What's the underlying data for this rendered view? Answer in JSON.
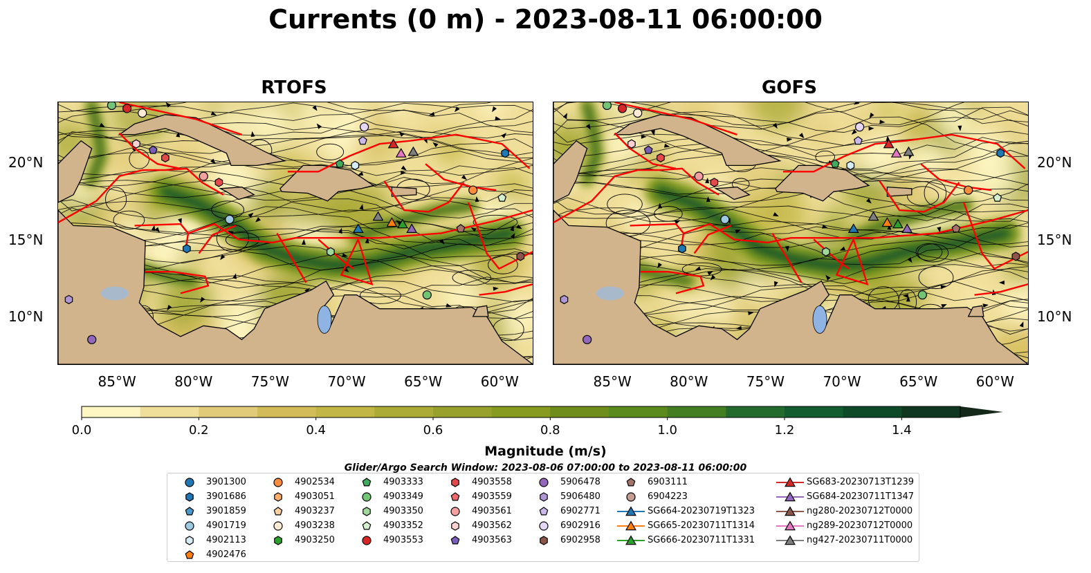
{
  "figure": {
    "title": "Currents (0 m) - 2023-08-11 06:00:00"
  },
  "panels": [
    {
      "title": "RTOFS"
    },
    {
      "title": "GOFS"
    }
  ],
  "axes": {
    "lon_ticks": [
      "85°W",
      "80°W",
      "75°W",
      "70°W",
      "65°W",
      "60°W"
    ],
    "lat_ticks": [
      "20°N",
      "15°N",
      "10°N"
    ]
  },
  "colorbar": {
    "label": "Magnitude (m/s)",
    "ticks": [
      "0.0",
      "0.2",
      "0.4",
      "0.6",
      "0.8",
      "1.0",
      "1.2",
      "1.4"
    ],
    "range": [
      0.0,
      1.5
    ],
    "step": 0.1,
    "colors": [
      "#fef6c3",
      "#f0df9a",
      "#e1cb78",
      "#d4bb59",
      "#c2b646",
      "#acab38",
      "#98a12c",
      "#869b1f",
      "#6f8d1a",
      "#5b8a1d",
      "#437f22",
      "#226b2c",
      "#125c2f",
      "#0e4a28",
      "#103820",
      "#14281a"
    ]
  },
  "search_window": "Glider/Argo Search Window: 2023-08-06 07:00:00 to 2023-08-11 06:00:00",
  "legend": {
    "columns": [
      [
        {
          "label": "3901300",
          "marker": "circle",
          "color": "#1f77b4"
        },
        {
          "label": "3901686",
          "marker": "hexagon",
          "color": "#1f77b4"
        },
        {
          "label": "3901859",
          "marker": "pentagon",
          "color": "#4a98c9"
        },
        {
          "label": "4901719",
          "marker": "circle",
          "color": "#9ecae1"
        },
        {
          "label": "4902113",
          "marker": "hexagon",
          "color": "#d6ecf7"
        },
        {
          "label": "4902476",
          "marker": "pentagon",
          "color": "#ff7f0e"
        }
      ],
      [
        {
          "label": "4902534",
          "marker": "circle",
          "color": "#fd8d3c"
        },
        {
          "label": "4903051",
          "marker": "hexagon",
          "color": "#fdae6b"
        },
        {
          "label": "4903237",
          "marker": "pentagon",
          "color": "#fdd0a2"
        },
        {
          "label": "4903238",
          "marker": "circle",
          "color": "#feebd6"
        },
        {
          "label": "4903250",
          "marker": "hexagon",
          "color": "#2ca02c"
        }
      ],
      [
        {
          "label": "4903333",
          "marker": "pentagon",
          "color": "#41ab5d"
        },
        {
          "label": "4903349",
          "marker": "circle",
          "color": "#74c476"
        },
        {
          "label": "4903350",
          "marker": "hexagon",
          "color": "#a1d99b"
        },
        {
          "label": "4903352",
          "marker": "pentagon",
          "color": "#d5f0cf"
        },
        {
          "label": "4903553",
          "marker": "circle",
          "color": "#d62728"
        }
      ],
      [
        {
          "label": "4903558",
          "marker": "hexagon",
          "color": "#e34a4b"
        },
        {
          "label": "4903559",
          "marker": "pentagon",
          "color": "#ef6a6b"
        },
        {
          "label": "4903561",
          "marker": "circle",
          "color": "#f4a0a0"
        },
        {
          "label": "4903562",
          "marker": "hexagon",
          "color": "#fcd2d2"
        },
        {
          "label": "4903563",
          "marker": "pentagon",
          "color": "#7b5eb8"
        }
      ],
      [
        {
          "label": "5906478",
          "marker": "circle",
          "color": "#9467bd"
        },
        {
          "label": "5906480",
          "marker": "hexagon",
          "color": "#b196d6"
        },
        {
          "label": "6902771",
          "marker": "pentagon",
          "color": "#cdb8ec"
        },
        {
          "label": "6902916",
          "marker": "circle",
          "color": "#e6d6f7"
        },
        {
          "label": "6902958",
          "marker": "hexagon",
          "color": "#8c564b"
        }
      ],
      [
        {
          "label": "6903111",
          "marker": "pentagon",
          "color": "#a47468"
        },
        {
          "label": "6904223",
          "marker": "circle",
          "color": "#c49c94"
        },
        {
          "label": "SG664-20230719T1323",
          "marker": "triangle",
          "color": "#1f77b4",
          "line": true
        },
        {
          "label": "SG665-20230711T1314",
          "marker": "triangle",
          "color": "#ff7f0e",
          "line": true
        },
        {
          "label": "SG666-20230711T1331",
          "marker": "triangle",
          "color": "#2ca02c",
          "line": true
        }
      ],
      [
        {
          "label": "SG683-20230713T1239",
          "marker": "triangle",
          "color": "#d62728",
          "line": true
        },
        {
          "label": "SG684-20230711T1347",
          "marker": "triangle",
          "color": "#9467bd",
          "line": true
        },
        {
          "label": "ng280-20230712T0000",
          "marker": "triangle",
          "color": "#8c564b",
          "line": true
        },
        {
          "label": "ng289-20230712T0000",
          "marker": "triangle",
          "color": "#e377c2",
          "line": true
        },
        {
          "label": "ng427-20230711T0000",
          "marker": "triangle",
          "color": "#7f7f7f",
          "line": true
        }
      ]
    ]
  },
  "map_markers": [
    {
      "lon": -67.1,
      "lat": 21.3,
      "marker": "triangle",
      "color": "#d62728"
    },
    {
      "lon": -66.6,
      "lat": 20.7,
      "marker": "triangle",
      "color": "#e377c2"
    },
    {
      "lon": -65.8,
      "lat": 20.8,
      "marker": "triangle",
      "color": "#7f7f7f"
    },
    {
      "lon": -69.4,
      "lat": 15.8,
      "marker": "triangle",
      "color": "#1f77b4"
    },
    {
      "lon": -68.1,
      "lat": 16.6,
      "marker": "triangle",
      "color": "#7f7f7f"
    },
    {
      "lon": -67.2,
      "lat": 16.2,
      "marker": "triangle",
      "color": "#ff7f0e"
    },
    {
      "lon": -66.5,
      "lat": 16.1,
      "marker": "triangle",
      "color": "#2ca02c"
    },
    {
      "lon": -65.9,
      "lat": 15.8,
      "marker": "triangle",
      "color": "#9467bd"
    },
    {
      "lon": -85.5,
      "lat": 23.8,
      "marker": "circle",
      "color": "#74c476"
    },
    {
      "lon": -84.5,
      "lat": 23.6,
      "marker": "circle",
      "color": "#d62728"
    },
    {
      "lon": -83.5,
      "lat": 23.3,
      "marker": "circle",
      "color": "#feebd6"
    },
    {
      "lon": -83.9,
      "lat": 21.3,
      "marker": "hexagon",
      "color": "#fcd2d2"
    },
    {
      "lon": -82.8,
      "lat": 20.9,
      "marker": "pentagon",
      "color": "#7b5eb8"
    },
    {
      "lon": -82.0,
      "lat": 20.4,
      "marker": "hexagon",
      "color": "#e34a4b"
    },
    {
      "lon": -79.5,
      "lat": 19.2,
      "marker": "circle",
      "color": "#f4a0a0"
    },
    {
      "lon": -78.5,
      "lat": 18.8,
      "marker": "hexagon",
      "color": "#e34a4b"
    },
    {
      "lon": -77.8,
      "lat": 16.4,
      "marker": "circle",
      "color": "#9ecae1"
    },
    {
      "lon": -80.6,
      "lat": 14.5,
      "marker": "hexagon",
      "color": "#1f77b4"
    },
    {
      "lon": -69.0,
      "lat": 22.4,
      "marker": "circle",
      "color": "#e6d6f7"
    },
    {
      "lon": -69.1,
      "lat": 21.5,
      "marker": "pentagon",
      "color": "#cdb8ec"
    },
    {
      "lon": -70.6,
      "lat": 20.0,
      "marker": "pentagon",
      "color": "#41ab5d"
    },
    {
      "lon": -69.6,
      "lat": 19.9,
      "marker": "hexagon",
      "color": "#d6ecf7"
    },
    {
      "lon": -59.8,
      "lat": 20.7,
      "marker": "hexagon",
      "color": "#1f77b4"
    },
    {
      "lon": -61.9,
      "lat": 18.3,
      "marker": "circle",
      "color": "#fd8d3c"
    },
    {
      "lon": -60.0,
      "lat": 17.8,
      "marker": "pentagon",
      "color": "#d5f0cf"
    },
    {
      "lon": -62.7,
      "lat": 15.8,
      "marker": "pentagon",
      "color": "#a47468"
    },
    {
      "lon": -58.8,
      "lat": 14.0,
      "marker": "hexagon",
      "color": "#8c564b"
    },
    {
      "lon": -71.2,
      "lat": 14.3,
      "marker": "hexagon",
      "color": "#a1d99b"
    },
    {
      "lon": -64.9,
      "lat": 11.5,
      "marker": "circle",
      "color": "#74c476"
    },
    {
      "lon": -88.3,
      "lat": 11.2,
      "marker": "hexagon",
      "color": "#b196d6"
    },
    {
      "lon": -86.8,
      "lat": 8.6,
      "marker": "circle",
      "color": "#9467bd"
    }
  ]
}
